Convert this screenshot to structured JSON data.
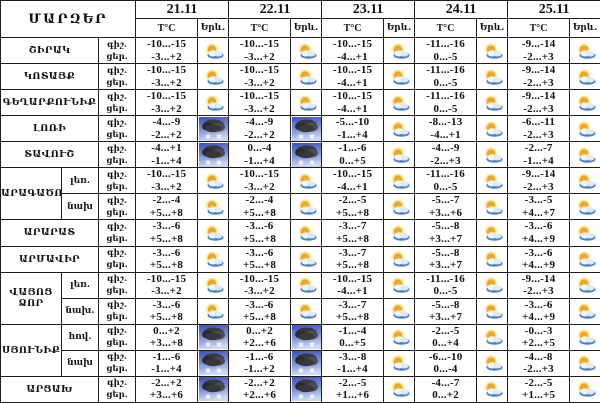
{
  "table": {
    "corner_label": "ՄԱՐԶԵՐ",
    "dates": [
      "21.11",
      "22.11",
      "23.11",
      "24.11",
      "25.11"
    ],
    "temp_header": "T°C",
    "phenom_header": "Երև.",
    "night_label": "գիշ.",
    "day_label": "ցեր.",
    "rows": [
      {
        "region": "ՇԻՐԱԿ",
        "region_span": 1,
        "subarea": null,
        "cells": [
          {
            "night": "-10...-15",
            "day": "-3...+2",
            "icon": "sun-cloud"
          },
          {
            "night": "-10...-15",
            "day": "-3...+2",
            "icon": "sun-cloud"
          },
          {
            "night": "-10...-15",
            "day": "-4...+1",
            "icon": "sun-cloud"
          },
          {
            "night": "-11...-16",
            "day": "0...-5",
            "icon": "sun-cloud"
          },
          {
            "night": "-9...-14",
            "day": "-2...+3",
            "icon": "sun-cloud"
          }
        ]
      },
      {
        "region": "ԿՈՏԱՅՔ",
        "region_span": 1,
        "subarea": null,
        "cells": [
          {
            "night": "-10...-15",
            "day": "-3...+2",
            "icon": "sun-cloud"
          },
          {
            "night": "-10...-15",
            "day": "-3...+2",
            "icon": "sun-cloud"
          },
          {
            "night": "-10...-15",
            "day": "-4...+1",
            "icon": "sun-cloud"
          },
          {
            "night": "-11...-16",
            "day": "0...-5",
            "icon": "sun-cloud"
          },
          {
            "night": "-9...-14",
            "day": "-2...+3",
            "icon": "sun-cloud"
          }
        ]
      },
      {
        "region": "ԳԵՂԱՐՔՈՒՆԻՔ",
        "region_span": 1,
        "subarea": null,
        "cells": [
          {
            "night": "-10...-15",
            "day": "-3...+2",
            "icon": "sun-cloud"
          },
          {
            "night": "-10...-15",
            "day": "-3...+2",
            "icon": "sun-cloud"
          },
          {
            "night": "-10...-15",
            "day": "-4...+1",
            "icon": "sun-cloud"
          },
          {
            "night": "-11...-16",
            "day": "0...-5",
            "icon": "sun-cloud"
          },
          {
            "night": "-9...-14",
            "day": "-2...+3",
            "icon": "sun-cloud"
          }
        ]
      },
      {
        "region": "ԼՈՌԻ",
        "region_span": 1,
        "subarea": null,
        "cells": [
          {
            "night": "-4...-9",
            "day": "-2...+2",
            "icon": "snow"
          },
          {
            "night": "-4...-9",
            "day": "-2...+2",
            "icon": "snow"
          },
          {
            "night": "-5...-10",
            "day": "-1...+4",
            "icon": "sun-cloud"
          },
          {
            "night": "-8...-13",
            "day": "-4...+1",
            "icon": "sun-cloud"
          },
          {
            "night": "-6...-11",
            "day": "-2...+3",
            "icon": "sun-cloud"
          }
        ]
      },
      {
        "region": "ՏԱՎՈՒՇ",
        "region_span": 1,
        "subarea": null,
        "cells": [
          {
            "night": "-4...+1",
            "day": "-1...+4",
            "icon": "snow"
          },
          {
            "night": "0...-4",
            "day": "-1...+4",
            "icon": "snow"
          },
          {
            "night": "-1...-6",
            "day": "0...+5",
            "icon": "sun-cloud"
          },
          {
            "night": "-4...-9",
            "day": "-2...+3",
            "icon": "sun-cloud"
          },
          {
            "night": "-2...-7",
            "day": "-1...+4",
            "icon": "sun-cloud"
          }
        ]
      },
      {
        "region": "ԱՐԱԳԱԾՈՏՆ",
        "region_span": 2,
        "subarea": "լեռ.",
        "cells": [
          {
            "night": "-10...-15",
            "day": "-3...+2",
            "icon": "sun-cloud"
          },
          {
            "night": "-10...-15",
            "day": "-3...+2",
            "icon": "sun-cloud"
          },
          {
            "night": "-10...-15",
            "day": "-4...+1",
            "icon": "sun-cloud"
          },
          {
            "night": "-11...-16",
            "day": "0...-5",
            "icon": "sun-cloud"
          },
          {
            "night": "-9...-14",
            "day": "-2...+3",
            "icon": "sun-cloud"
          }
        ]
      },
      {
        "region": null,
        "region_span": 0,
        "subarea": "նախ",
        "cells": [
          {
            "night": "-2...-4",
            "day": "+5...+8",
            "icon": "sun-cloud"
          },
          {
            "night": "-2...-4",
            "day": "+5...+8",
            "icon": "sun-cloud"
          },
          {
            "night": "-2...-5",
            "day": "+5...+8",
            "icon": "sun-cloud"
          },
          {
            "night": "-5...-7",
            "day": "+3...+6",
            "icon": "sun-cloud"
          },
          {
            "night": "-3...-5",
            "day": "+4...+7",
            "icon": "sun-cloud"
          }
        ]
      },
      {
        "region": "ԱՐԱՐԱՏ",
        "region_span": 1,
        "subarea": null,
        "cells": [
          {
            "night": "-3...-6",
            "day": "+5...+8",
            "icon": "sun-cloud"
          },
          {
            "night": "-3...-6",
            "day": "+5...+8",
            "icon": "sun-cloud"
          },
          {
            "night": "-3...-7",
            "day": "+5...+8",
            "icon": "sun-cloud"
          },
          {
            "night": "-5...-8",
            "day": "+3...+7",
            "icon": "sun-cloud"
          },
          {
            "night": "-3...-6",
            "day": "+4...+9",
            "icon": "sun-cloud"
          }
        ]
      },
      {
        "region": "ԱՐՄԱՎԻՐ",
        "region_span": 1,
        "subarea": null,
        "cells": [
          {
            "night": "-3...-6",
            "day": "+5...+8",
            "icon": "sun-cloud"
          },
          {
            "night": "-3...-6",
            "day": "+5...+8",
            "icon": "sun-cloud"
          },
          {
            "night": "-3...-7",
            "day": "+5...+8",
            "icon": "sun-cloud"
          },
          {
            "night": "-5...-8",
            "day": "+3...+7",
            "icon": "sun-cloud"
          },
          {
            "night": "-3...-6",
            "day": "+4...+9",
            "icon": "sun-cloud"
          }
        ]
      },
      {
        "region": "ՎԱՅՈՑ ՁՈՐ",
        "region_span": 2,
        "subarea": "լեռ.",
        "cells": [
          {
            "night": "-10...-15",
            "day": "-3...+2",
            "icon": "sun-cloud"
          },
          {
            "night": "-10...-15",
            "day": "-3...+2",
            "icon": "sun-cloud"
          },
          {
            "night": "-10...-15",
            "day": "-4...+1",
            "icon": "sun-cloud"
          },
          {
            "night": "-11...-16",
            "day": "0...-5",
            "icon": "sun-cloud"
          },
          {
            "night": "-9...-14",
            "day": "-2...+3",
            "icon": "sun-cloud"
          }
        ]
      },
      {
        "region": null,
        "region_span": 0,
        "subarea": "նախ.",
        "cells": [
          {
            "night": "-3...-6",
            "day": "+5...+8",
            "icon": "sun-cloud"
          },
          {
            "night": "-3...-6",
            "day": "+5...+8",
            "icon": "sun-cloud"
          },
          {
            "night": "-3...-7",
            "day": "+5...+8",
            "icon": "sun-cloud"
          },
          {
            "night": "-5...-8",
            "day": "+3...+7",
            "icon": "sun-cloud"
          },
          {
            "night": "-3...-6",
            "day": "+4...+9",
            "icon": "sun-cloud"
          }
        ]
      },
      {
        "region": "ՍՅՈՒՆԻՔ",
        "region_span": 2,
        "subarea": "հով.",
        "cells": [
          {
            "night": "0...+2",
            "day": "+3...+8",
            "icon": "snow"
          },
          {
            "night": "0...+2",
            "day": "+2...+6",
            "icon": "snow"
          },
          {
            "night": "-1...-4",
            "day": "0...+5",
            "icon": "sun-cloud"
          },
          {
            "night": "-2...-5",
            "day": "0...+4",
            "icon": "sun-cloud"
          },
          {
            "night": "-0...-3",
            "day": "+2...+5",
            "icon": "sun-cloud"
          }
        ]
      },
      {
        "region": null,
        "region_span": 0,
        "subarea": "նախ",
        "cells": [
          {
            "night": "-1...-6",
            "day": "-1...+4",
            "icon": "snow"
          },
          {
            "night": "-1...-6",
            "day": "-1...+2",
            "icon": "snow"
          },
          {
            "night": "-3...-8",
            "day": "-1...+4",
            "icon": "sun-cloud"
          },
          {
            "night": "-6...-10",
            "day": "0...-4",
            "icon": "sun-cloud"
          },
          {
            "night": "-4...-8",
            "day": "-2...+3",
            "icon": "sun-cloud"
          }
        ]
      },
      {
        "region": "ԱՐՑԱԽ",
        "region_span": 1,
        "subarea": null,
        "cells": [
          {
            "night": "-2...+2",
            "day": "+3...+6",
            "icon": "snow"
          },
          {
            "night": "-2...+2",
            "day": "+2...+6",
            "icon": "snow"
          },
          {
            "night": "-2...-5",
            "day": "+1...+6",
            "icon": "sun-cloud"
          },
          {
            "night": "-4...-7",
            "day": "0...+2",
            "icon": "sun-cloud"
          },
          {
            "night": "-2...-5",
            "day": "+1...+5",
            "icon": "sun-cloud"
          }
        ]
      }
    ]
  },
  "colors": {
    "sun": "#f2a51d",
    "sun_glow": "#fbd14b",
    "cloud_white": "#f2f7fd",
    "cloud_blue": "#4a7fd0",
    "snow_bg_top": "#3a4fc4",
    "snow_bg_bottom": "#cdd9f4",
    "snow_cloud": "#3a3a3a",
    "snowflake": "#ffffff",
    "border": "#1c1c1c"
  }
}
